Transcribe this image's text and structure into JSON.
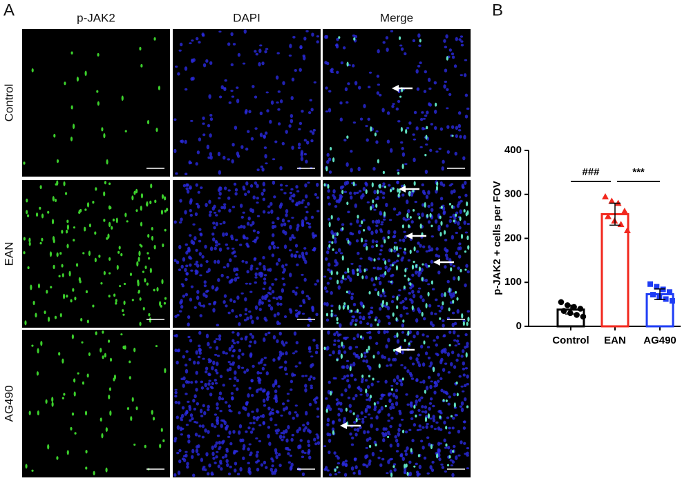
{
  "panel_a": {
    "label": "A",
    "columns": [
      "p-JAK2",
      "DAPI",
      "Merge"
    ],
    "rows": [
      "Control",
      "EAN",
      "AG490"
    ]
  },
  "chart_data": {
    "type": "bar",
    "label": "B",
    "y_label": "p-JAK2 + cells per FOV",
    "categories": [
      "Control",
      "EAN",
      "AG490"
    ],
    "values": [
      38,
      255,
      73
    ],
    "errors": [
      10,
      25,
      12
    ],
    "colors": [
      "#000000",
      "#f2281e",
      "#1e3cf5"
    ],
    "markers": [
      "circle",
      "triangle",
      "square"
    ],
    "points": [
      [
        55,
        48,
        44,
        40,
        35,
        30,
        26,
        22
      ],
      [
        295,
        285,
        280,
        262,
        250,
        240,
        232,
        218
      ],
      [
        96,
        90,
        84,
        78,
        72,
        66,
        62,
        58
      ]
    ],
    "annotations": [
      "###",
      "***"
    ],
    "ylim": [
      0,
      400
    ],
    "yticks": [
      0,
      100,
      200,
      300,
      400
    ]
  }
}
